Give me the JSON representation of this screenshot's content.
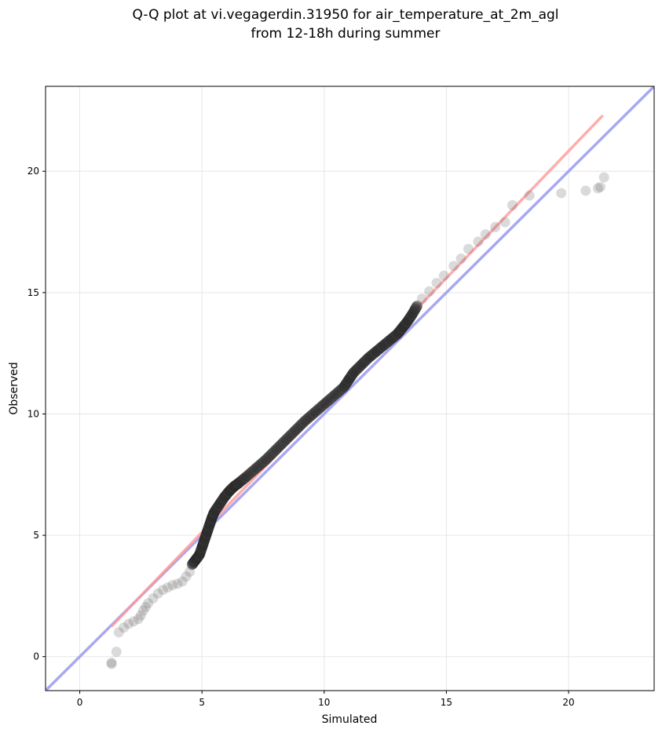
{
  "chart_data": {
    "type": "scatter",
    "title_line1": "Q-Q plot at vi.vegagerdin.31950 for air_temperature_at_2m_agl",
    "title_line2": "from 12-18h during summer",
    "xlabel": "Simulated",
    "ylabel": "Observed",
    "xlim": [
      -1.4,
      23.5
    ],
    "ylim": [
      -1.4,
      23.5
    ],
    "xticks": [
      0,
      5,
      10,
      15,
      20
    ],
    "yticks": [
      0,
      5,
      10,
      15,
      20
    ],
    "grid": true,
    "colors": {
      "points": "#555555",
      "identity_line": "#9999ee",
      "fit_line": "#ff9999",
      "grid": "#e6e6e6"
    },
    "identity_line": {
      "x": [
        -1.4,
        23.5
      ],
      "y": [
        -1.4,
        23.5
      ]
    },
    "fit_line": {
      "x": [
        1.3,
        21.4
      ],
      "y": [
        1.25,
        22.3
      ]
    },
    "quantiles": {
      "x": [
        1.3,
        1.3,
        1.5,
        1.6,
        1.8,
        2.0,
        2.2,
        2.4,
        2.5,
        2.6,
        2.7,
        2.8,
        3.0,
        3.2,
        3.4,
        3.6,
        3.8,
        4.0,
        4.2,
        4.35,
        4.5,
        4.6,
        4.75,
        4.9,
        5.0,
        5.1,
        5.2,
        5.3,
        5.4,
        5.5,
        5.7,
        5.9,
        6.1,
        6.3,
        6.5,
        6.8,
        7.2,
        7.6,
        8.0,
        8.4,
        8.8,
        9.2,
        9.6,
        10.0,
        10.4,
        10.8,
        11.0,
        11.2,
        11.5,
        11.8,
        12.1,
        12.4,
        12.7,
        13.0,
        13.2,
        13.4,
        13.6,
        13.8,
        14.0,
        14.3,
        14.6,
        14.9,
        15.3,
        15.6,
        15.9,
        16.3,
        16.6,
        17.0,
        17.4,
        17.7,
        18.4,
        19.7,
        20.7,
        21.2,
        21.3,
        21.45
      ],
      "y": [
        -0.3,
        -0.25,
        0.2,
        1.0,
        1.2,
        1.35,
        1.45,
        1.55,
        1.7,
        1.9,
        2.05,
        2.2,
        2.4,
        2.6,
        2.75,
        2.85,
        2.95,
        3.0,
        3.1,
        3.3,
        3.5,
        3.8,
        4.0,
        4.2,
        4.5,
        4.8,
        5.1,
        5.4,
        5.7,
        5.95,
        6.25,
        6.55,
        6.8,
        7.0,
        7.15,
        7.4,
        7.75,
        8.1,
        8.5,
        8.9,
        9.3,
        9.7,
        10.05,
        10.4,
        10.75,
        11.1,
        11.4,
        11.7,
        12.0,
        12.3,
        12.55,
        12.8,
        13.05,
        13.3,
        13.55,
        13.8,
        14.1,
        14.45,
        14.75,
        15.05,
        15.4,
        15.7,
        16.1,
        16.4,
        16.8,
        17.1,
        17.4,
        17.7,
        17.9,
        18.6,
        19.0,
        19.1,
        19.2,
        19.3,
        19.35,
        19.75
      ]
    }
  }
}
